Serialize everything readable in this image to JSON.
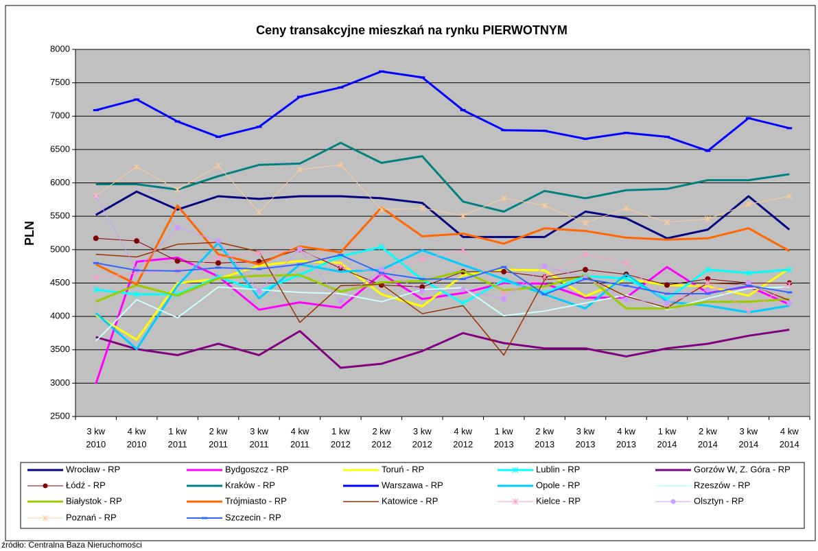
{
  "chart_data": {
    "type": "line",
    "title": "Ceny transakcyjne mieszkań na rynku PIERWOTNYM",
    "y_label": "PLN",
    "source": "źródło: Centralna Baza Nieruchomości",
    "categories": [
      "3 kw 2010",
      "4 kw 2010",
      "1 kw 2011",
      "2 kw 2011",
      "3 kw 2011",
      "4 kw 2011",
      "1 kw 2012",
      "2 kw 2012",
      "3 kw 2012",
      "4 kw 2012",
      "1 kw 2013",
      "2 kw 2013",
      "3 kw 2013",
      "4 kw 2013",
      "1 kw 2014",
      "2 kw 2014",
      "3 kw 2014",
      "4 kw 2014"
    ],
    "ylim": [
      2500,
      8000
    ],
    "yticks": [
      2500,
      3000,
      3500,
      4000,
      4500,
      5000,
      5500,
      6000,
      6500,
      7000,
      7500,
      8000
    ],
    "grid": true,
    "plot_color": "#c0c0c0",
    "series": [
      {
        "name": "Wrocław - RP",
        "color": "#000080",
        "line_width": 3,
        "values": [
          5520,
          5870,
          5600,
          5800,
          5760,
          5800,
          5800,
          5770,
          5700,
          5190,
          5190,
          5190,
          5570,
          5470,
          5170,
          5300,
          5800,
          5300
        ]
      },
      {
        "name": "Bydgoszcz - RP",
        "color": "#ff00ff",
        "line_width": 3,
        "values": [
          2990,
          4820,
          4880,
          4600,
          4100,
          4210,
          4130,
          4640,
          4260,
          4350,
          4500,
          4490,
          4280,
          4280,
          4740,
          4350,
          4450,
          4180
        ]
      },
      {
        "name": "Toruń - RP",
        "color": "#ffff00",
        "line_width": 3,
        "values": [
          4020,
          3650,
          4500,
          4560,
          4760,
          4830,
          4800,
          4330,
          4150,
          4620,
          4700,
          4690,
          4300,
          4560,
          4470,
          4450,
          4310,
          4720
        ]
      },
      {
        "name": "Lublin - RP",
        "color": "#00ffff",
        "line_width": 3,
        "marker": "cross",
        "values": [
          4400,
          4330,
          4330,
          4590,
          4380,
          4620,
          4900,
          5040,
          4550,
          4200,
          4540,
          4350,
          4600,
          4570,
          4260,
          4700,
          4650,
          4700
        ]
      },
      {
        "name": "Gorzów W, Z. Góra - RP",
        "color": "#800080",
        "line_width": 3,
        "values": [
          3690,
          3510,
          3420,
          3590,
          3420,
          3780,
          3230,
          3290,
          3480,
          3750,
          3600,
          3520,
          3520,
          3400,
          3520,
          3590,
          3710,
          3800
        ]
      },
      {
        "name": "Łódź - RP",
        "color": "#800000",
        "line_width": 1,
        "marker": "circle",
        "values": [
          5170,
          5130,
          4830,
          4800,
          4820,
          5000,
          4720,
          4470,
          4440,
          4670,
          4670,
          4590,
          4700,
          4630,
          4470,
          4560,
          4500,
          4500
        ]
      },
      {
        "name": "Kraków - RP",
        "color": "#008080",
        "line_width": 3,
        "values": [
          5980,
          5980,
          5900,
          6100,
          6270,
          6290,
          6600,
          6300,
          6400,
          5720,
          5570,
          5880,
          5770,
          5890,
          5910,
          6040,
          6040,
          6130
        ]
      },
      {
        "name": "Warszawa - RP",
        "color": "#0000ff",
        "line_width": 3,
        "marker": "dash",
        "values": [
          7090,
          7250,
          6920,
          6690,
          6840,
          7290,
          7430,
          7670,
          7580,
          7090,
          6790,
          6780,
          6660,
          6750,
          6690,
          6480,
          6970,
          6820
        ]
      },
      {
        "name": "Opole - RP",
        "color": "#00ccff",
        "line_width": 3,
        "values": [
          4050,
          3510,
          4460,
          5100,
          4270,
          4780,
          4670,
          4700,
          4990,
          4770,
          4560,
          4330,
          4120,
          4630,
          4220,
          4160,
          4060,
          4160
        ]
      },
      {
        "name": "Rzeszów - RP",
        "color": "#ccffff",
        "line_width": 2,
        "values": [
          3630,
          4250,
          3980,
          4440,
          4400,
          4360,
          4340,
          4220,
          4400,
          4430,
          4010,
          4080,
          4200,
          4320,
          4100,
          4270,
          4420,
          4440
        ]
      },
      {
        "name": "Białystok - RP",
        "color": "#99cc00",
        "line_width": 3,
        "values": [
          4220,
          4470,
          4310,
          4570,
          4610,
          4620,
          4370,
          4510,
          4530,
          4680,
          4390,
          4450,
          4620,
          4120,
          4120,
          4220,
          4220,
          4260
        ]
      },
      {
        "name": "Trójmiasto - RP",
        "color": "#ff6600",
        "line_width": 3,
        "values": [
          4780,
          4480,
          5660,
          4930,
          4780,
          5050,
          4960,
          5630,
          5200,
          5240,
          5090,
          5320,
          5280,
          5180,
          5150,
          5170,
          5320,
          4980
        ]
      },
      {
        "name": "Katowice - RP",
        "color": "#993300",
        "line_width": 1.5,
        "values": [
          4930,
          4890,
          5080,
          5110,
          4970,
          3910,
          4460,
          4480,
          4040,
          4160,
          3420,
          4550,
          4600,
          4300,
          4130,
          4500,
          4480,
          4240
        ]
      },
      {
        "name": "Kielce - RP",
        "color": "#ff99cc",
        "line_width": 1,
        "marker": "cross",
        "values": [
          4580,
          4650,
          4690,
          4880,
          4950,
          4990,
          4750,
          4650,
          4860,
          4990,
          4350,
          4590,
          4930,
          4800,
          4180,
          4510,
          4080,
          4480
        ]
      },
      {
        "name": "Olsztyn - RP",
        "color": "#cc99ff",
        "line_width": 1,
        "marker": "circle",
        "values": [
          5800,
          4700,
          5330,
          5130,
          4380,
          5010,
          4230,
          4700,
          4380,
          4400,
          4260,
          4750,
          4580,
          4250,
          4200,
          4400,
          4500,
          4200
        ]
      },
      {
        "name": "Poznań - RP",
        "color": "#ffcc99",
        "line_width": 1,
        "marker": "cross",
        "values": [
          5810,
          6240,
          5900,
          6260,
          5560,
          6200,
          6270,
          5600,
          5620,
          5510,
          5770,
          5660,
          5400,
          5620,
          5410,
          5460,
          5680,
          5800
        ]
      },
      {
        "name": "Szczecin - RP",
        "color": "#3366ff",
        "line_width": 2,
        "marker": "dash",
        "values": [
          4800,
          4690,
          4680,
          4730,
          4710,
          4780,
          4920,
          4650,
          4560,
          4560,
          4740,
          4330,
          4560,
          4460,
          4340,
          4340,
          4460,
          4360
        ]
      }
    ]
  }
}
